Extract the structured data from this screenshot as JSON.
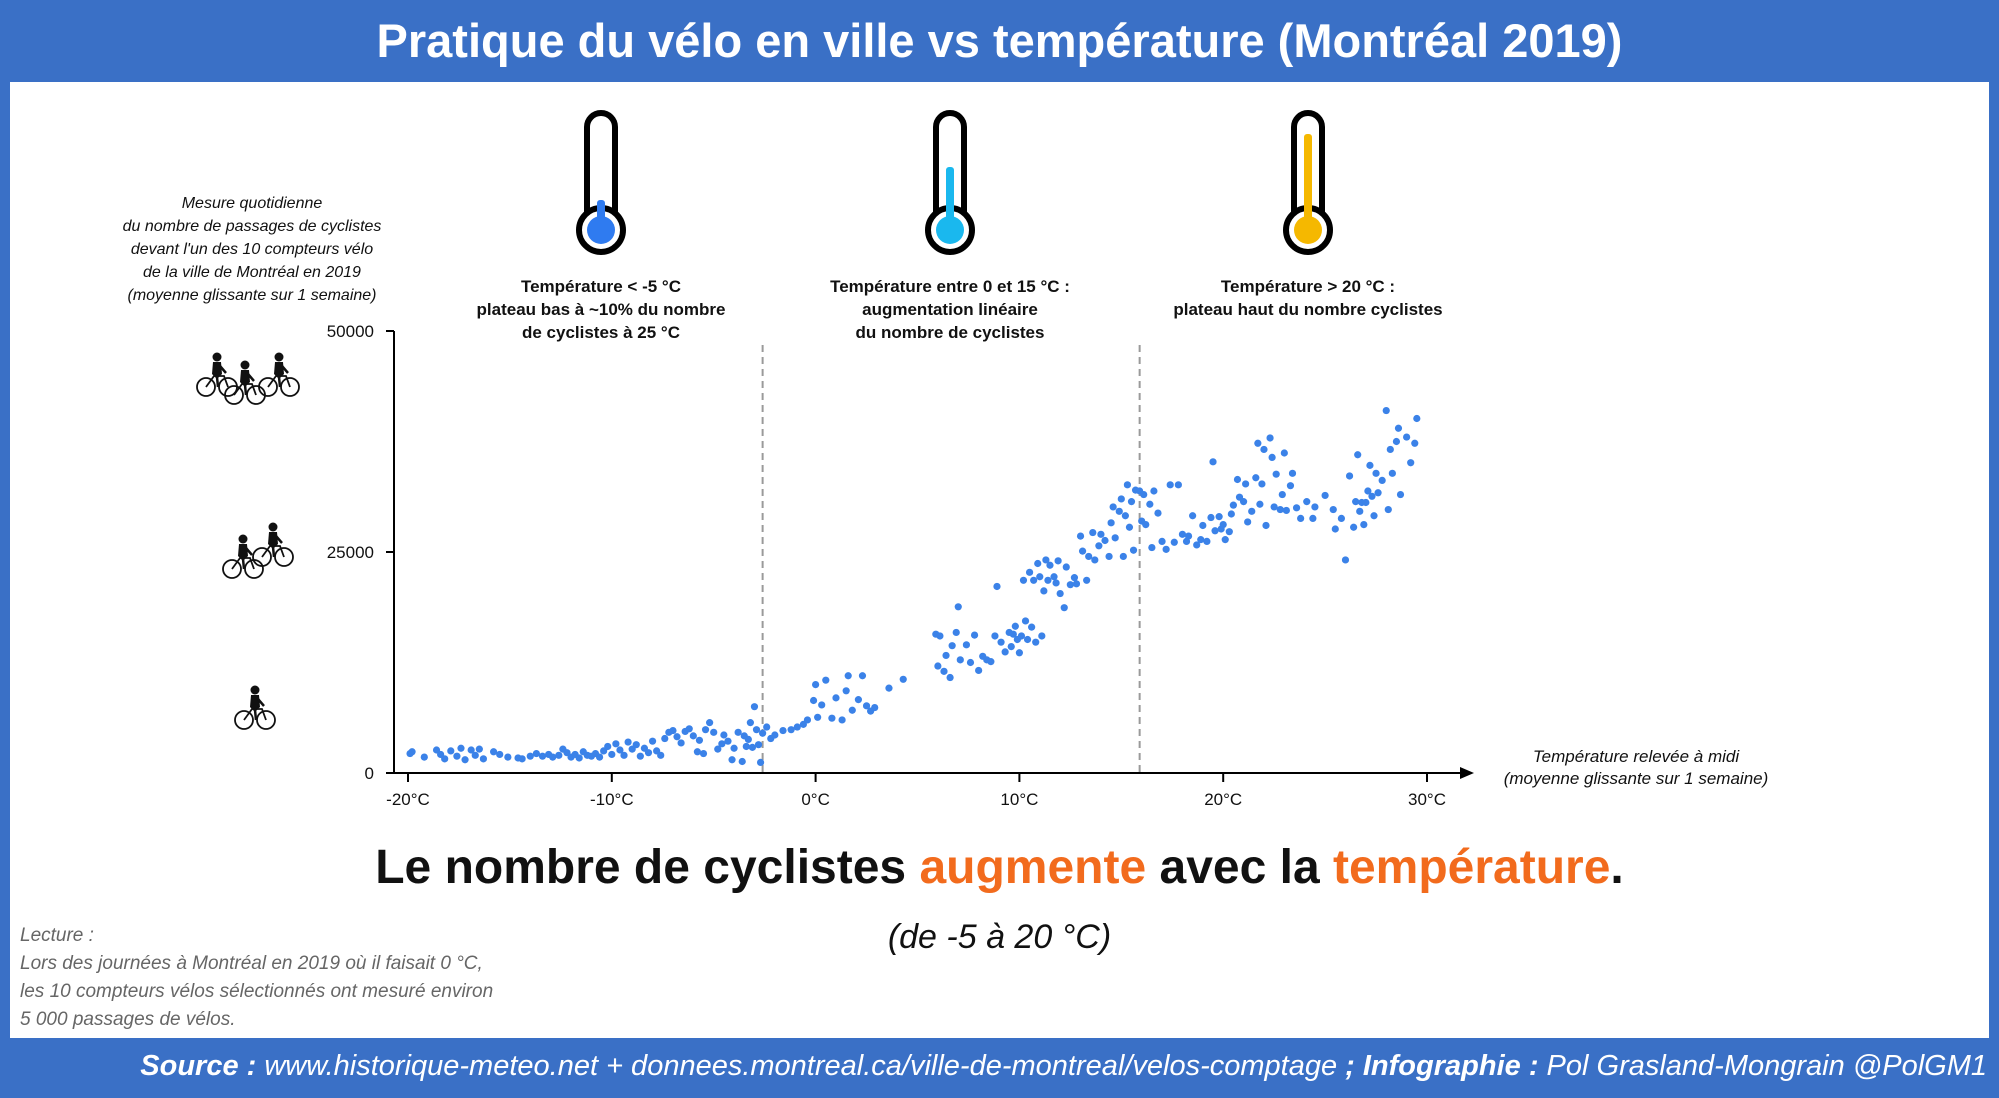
{
  "title": "Pratique du vélo en ville vs température (Montréal 2019)",
  "headline": {
    "part1": "Le nombre de cyclistes ",
    "word1": "augmente",
    "part2": " avec la ",
    "word2": "température",
    "part3": ".",
    "range": "(de -5 à 20 °C)",
    "highlight_color": "#f26b1d"
  },
  "reading": {
    "lines": [
      "Lecture :",
      "Lors des journées à Montréal en 2019 où il faisait 0 °C,",
      "les 10 compteurs vélos sélectionnés ont mesuré environ",
      "5 000 passages de vélos."
    ]
  },
  "footer": {
    "source_label": "Source :",
    "source_text": " www.historique-meteo.net + donnees.montreal.ca/ville-de-montreal/velos-comptage ",
    "credit_label": "; Infographie :",
    "credit_text": " Pol Grasland-Mongrain @PolGM1"
  },
  "annotations": {
    "cold": {
      "lines": [
        "Température < -5 °C",
        "plateau bas à ~10% du nombre",
        "de cyclistes à 25 °C"
      ],
      "thermometer_color": "#2f7bf0",
      "icon": "thermometer-low-icon"
    },
    "mid": {
      "lines": [
        "Température entre 0 et 15 °C :",
        "augmentation linéaire",
        "du nombre de cyclistes"
      ],
      "thermometer_color": "#1ab8ee",
      "icon": "thermometer-mid-icon"
    },
    "hot": {
      "lines": [
        "Température > 20 °C :",
        "plateau haut du nombre cyclistes"
      ],
      "thermometer_color": "#f5b800",
      "icon": "thermometer-high-icon"
    }
  },
  "chart_data": {
    "type": "scatter",
    "ylabel_lines": [
      "Mesure quotidienne",
      "du nombre de passages de cyclistes",
      "devant l'un des 10 compteurs vélo",
      "de la ville de Montréal en 2019",
      "(moyenne glissante sur 1 semaine)"
    ],
    "xlabel_lines": [
      "Température relevée à midi",
      "(moyenne glissante sur 1 semaine)"
    ],
    "xlim": [
      -20,
      30
    ],
    "ylim": [
      0,
      50000
    ],
    "xticks": [
      -20,
      -10,
      0,
      10,
      20,
      30
    ],
    "xtick_labels": [
      "-20°C",
      "-10°C",
      "0°C",
      "10°C",
      "20°C",
      "30°C"
    ],
    "yticks": [
      0,
      25000,
      50000
    ],
    "ytick_labels": [
      "0",
      "25000",
      "50000"
    ],
    "threshold_lines_x": [
      -2.6,
      15.9
    ],
    "point_color": "#3b82e8",
    "y_icons": [
      {
        "value": 44000,
        "icon": "three-cyclists-icon",
        "count": 3
      },
      {
        "value": 24000,
        "icon": "two-cyclists-icon",
        "count": 2
      },
      {
        "value": 7000,
        "icon": "one-cyclist-icon",
        "count": 1
      }
    ],
    "points": [
      [
        -19.9,
        2200
      ],
      [
        -19.8,
        2400
      ],
      [
        -19.2,
        1800
      ],
      [
        -18.6,
        2600
      ],
      [
        -18.4,
        2100
      ],
      [
        -18.2,
        1600
      ],
      [
        -17.9,
        2500
      ],
      [
        -17.6,
        1900
      ],
      [
        -17.4,
        2800
      ],
      [
        -17.2,
        1500
      ],
      [
        -16.9,
        2600
      ],
      [
        -16.7,
        2000
      ],
      [
        -16.5,
        2700
      ],
      [
        -16.3,
        1600
      ],
      [
        -15.8,
        2400
      ],
      [
        -15.5,
        2100
      ],
      [
        -15.1,
        1800
      ],
      [
        -14.6,
        1700
      ],
      [
        -14.4,
        1600
      ],
      [
        -14.0,
        1900
      ],
      [
        -13.7,
        2200
      ],
      [
        -13.4,
        1900
      ],
      [
        -13.1,
        2100
      ],
      [
        -12.9,
        1800
      ],
      [
        -12.6,
        2000
      ],
      [
        -12.4,
        2700
      ],
      [
        -12.2,
        2300
      ],
      [
        -12.0,
        1800
      ],
      [
        -11.8,
        2100
      ],
      [
        -11.6,
        1700
      ],
      [
        -11.4,
        2400
      ],
      [
        -11.2,
        2000
      ],
      [
        -11.0,
        1900
      ],
      [
        -10.8,
        2200
      ],
      [
        -10.6,
        1800
      ],
      [
        -10.4,
        2500
      ],
      [
        -10.2,
        3000
      ],
      [
        -10.0,
        2100
      ],
      [
        -9.8,
        3300
      ],
      [
        -9.6,
        2600
      ],
      [
        -9.4,
        2000
      ],
      [
        -9.2,
        3500
      ],
      [
        -9.0,
        2700
      ],
      [
        -8.8,
        3200
      ],
      [
        -8.6,
        1900
      ],
      [
        -8.4,
        2800
      ],
      [
        -8.2,
        2300
      ],
      [
        -8.0,
        3600
      ],
      [
        -7.8,
        2500
      ],
      [
        -7.6,
        2000
      ],
      [
        -7.4,
        3900
      ],
      [
        -7.2,
        4600
      ],
      [
        -7.0,
        4800
      ],
      [
        -6.8,
        4100
      ],
      [
        -6.6,
        3400
      ],
      [
        -6.4,
        4700
      ],
      [
        -6.2,
        5000
      ],
      [
        -6.0,
        4200
      ],
      [
        -5.8,
        2400
      ],
      [
        -5.7,
        3700
      ],
      [
        -5.5,
        2200
      ],
      [
        -5.4,
        4900
      ],
      [
        -5.2,
        5700
      ],
      [
        -5.0,
        4600
      ],
      [
        -4.8,
        2700
      ],
      [
        -4.6,
        3300
      ],
      [
        -4.5,
        4300
      ],
      [
        -4.3,
        3600
      ],
      [
        -4.1,
        1500
      ],
      [
        -4.0,
        2800
      ],
      [
        -3.8,
        4600
      ],
      [
        -3.6,
        1300
      ],
      [
        -3.5,
        4200
      ],
      [
        -3.4,
        3000
      ],
      [
        -3.3,
        3800
      ],
      [
        -3.2,
        5700
      ],
      [
        -3.1,
        2900
      ],
      [
        -3.0,
        7500
      ],
      [
        -2.9,
        4900
      ],
      [
        -2.8,
        3200
      ],
      [
        -2.7,
        1200
      ],
      [
        -2.6,
        4500
      ],
      [
        -2.4,
        5200
      ],
      [
        -2.2,
        3900
      ],
      [
        -2.0,
        4300
      ],
      [
        -1.6,
        4800
      ],
      [
        -1.2,
        4900
      ],
      [
        -0.9,
        5200
      ],
      [
        -0.6,
        5500
      ],
      [
        -0.4,
        6000
      ],
      [
        -0.1,
        8200
      ],
      [
        0.0,
        10000
      ],
      [
        0.1,
        6300
      ],
      [
        0.3,
        7700
      ],
      [
        0.5,
        10500
      ],
      [
        0.8,
        6200
      ],
      [
        1.0,
        8500
      ],
      [
        1.3,
        6000
      ],
      [
        1.5,
        9300
      ],
      [
        1.6,
        11000
      ],
      [
        1.8,
        7100
      ],
      [
        2.1,
        8300
      ],
      [
        2.3,
        11000
      ],
      [
        2.5,
        7600
      ],
      [
        2.7,
        7000
      ],
      [
        2.9,
        7400
      ],
      [
        3.6,
        9600
      ],
      [
        4.3,
        10600
      ],
      [
        5.9,
        15700
      ],
      [
        6.0,
        12100
      ],
      [
        6.1,
        15500
      ],
      [
        6.3,
        11500
      ],
      [
        6.4,
        13300
      ],
      [
        6.6,
        10800
      ],
      [
        6.7,
        14400
      ],
      [
        6.9,
        15900
      ],
      [
        7.0,
        18800
      ],
      [
        7.1,
        12800
      ],
      [
        7.4,
        14500
      ],
      [
        7.6,
        12500
      ],
      [
        7.8,
        15600
      ],
      [
        8.0,
        11600
      ],
      [
        8.2,
        13200
      ],
      [
        8.4,
        12800
      ],
      [
        8.6,
        12600
      ],
      [
        8.8,
        15500
      ],
      [
        8.9,
        21100
      ],
      [
        9.1,
        14800
      ],
      [
        9.3,
        13700
      ],
      [
        9.5,
        15900
      ],
      [
        9.6,
        14300
      ],
      [
        9.7,
        15700
      ],
      [
        9.8,
        16600
      ],
      [
        9.9,
        15100
      ],
      [
        10.0,
        13600
      ],
      [
        10.1,
        15500
      ],
      [
        10.2,
        21800
      ],
      [
        10.3,
        17200
      ],
      [
        10.4,
        15100
      ],
      [
        10.5,
        22700
      ],
      [
        10.6,
        16500
      ],
      [
        10.7,
        21800
      ],
      [
        10.8,
        14800
      ],
      [
        10.9,
        23700
      ],
      [
        11.0,
        22200
      ],
      [
        11.1,
        15500
      ],
      [
        11.2,
        20600
      ],
      [
        11.3,
        24100
      ],
      [
        11.4,
        21800
      ],
      [
        11.5,
        23500
      ],
      [
        11.7,
        22200
      ],
      [
        11.8,
        21500
      ],
      [
        11.9,
        24000
      ],
      [
        12.0,
        20300
      ],
      [
        12.2,
        18700
      ],
      [
        12.3,
        23300
      ],
      [
        12.5,
        21300
      ],
      [
        12.7,
        22100
      ],
      [
        12.8,
        21400
      ],
      [
        13.0,
        26800
      ],
      [
        13.1,
        25100
      ],
      [
        13.3,
        21800
      ],
      [
        13.4,
        24500
      ],
      [
        13.6,
        27200
      ],
      [
        13.7,
        24100
      ],
      [
        13.9,
        25700
      ],
      [
        14.0,
        27000
      ],
      [
        14.2,
        26300
      ],
      [
        14.4,
        24500
      ],
      [
        14.5,
        28300
      ],
      [
        14.6,
        30100
      ],
      [
        14.7,
        26600
      ],
      [
        14.9,
        29600
      ],
      [
        15.0,
        31000
      ],
      [
        15.1,
        24500
      ],
      [
        15.2,
        29100
      ],
      [
        15.3,
        32600
      ],
      [
        15.4,
        27800
      ],
      [
        15.5,
        30700
      ],
      [
        15.6,
        25200
      ],
      [
        15.7,
        32000
      ],
      [
        15.9,
        31900
      ],
      [
        16.0,
        28500
      ],
      [
        16.1,
        31500
      ],
      [
        16.2,
        28100
      ],
      [
        16.4,
        30400
      ],
      [
        16.5,
        25500
      ],
      [
        16.6,
        31900
      ],
      [
        16.8,
        29400
      ],
      [
        17.0,
        26200
      ],
      [
        17.2,
        25300
      ],
      [
        17.4,
        32600
      ],
      [
        17.6,
        26100
      ],
      [
        17.8,
        32600
      ],
      [
        18.0,
        27000
      ],
      [
        18.2,
        26200
      ],
      [
        18.3,
        26800
      ],
      [
        18.5,
        29100
      ],
      [
        18.7,
        25800
      ],
      [
        18.9,
        26400
      ],
      [
        19.0,
        28000
      ],
      [
        19.2,
        26200
      ],
      [
        19.4,
        28900
      ],
      [
        19.5,
        35200
      ],
      [
        19.6,
        27400
      ],
      [
        19.8,
        29000
      ],
      [
        19.9,
        27600
      ],
      [
        20.0,
        28100
      ],
      [
        20.1,
        26400
      ],
      [
        20.3,
        27300
      ],
      [
        20.4,
        29300
      ],
      [
        20.5,
        30300
      ],
      [
        20.7,
        33200
      ],
      [
        20.8,
        31200
      ],
      [
        21.0,
        30700
      ],
      [
        21.1,
        32700
      ],
      [
        21.2,
        28400
      ],
      [
        21.4,
        29600
      ],
      [
        21.6,
        33400
      ],
      [
        21.7,
        37300
      ],
      [
        21.8,
        30400
      ],
      [
        21.9,
        32700
      ],
      [
        22.0,
        36600
      ],
      [
        22.1,
        28000
      ],
      [
        22.3,
        37900
      ],
      [
        22.4,
        35700
      ],
      [
        22.5,
        30100
      ],
      [
        22.6,
        33800
      ],
      [
        22.8,
        29800
      ],
      [
        22.9,
        31500
      ],
      [
        23.0,
        36200
      ],
      [
        23.1,
        29700
      ],
      [
        23.3,
        32500
      ],
      [
        23.4,
        33900
      ],
      [
        23.6,
        30000
      ],
      [
        23.8,
        28800
      ],
      [
        24.1,
        30700
      ],
      [
        24.4,
        28800
      ],
      [
        24.5,
        30100
      ],
      [
        25.0,
        31400
      ],
      [
        25.4,
        29800
      ],
      [
        25.5,
        27600
      ],
      [
        25.8,
        28800
      ],
      [
        26.0,
        24100
      ],
      [
        26.2,
        33600
      ],
      [
        26.4,
        27800
      ],
      [
        26.5,
        30700
      ],
      [
        26.6,
        36000
      ],
      [
        26.7,
        29600
      ],
      [
        26.8,
        30600
      ],
      [
        26.9,
        28100
      ],
      [
        27.0,
        30600
      ],
      [
        27.1,
        31900
      ],
      [
        27.2,
        34800
      ],
      [
        27.3,
        31300
      ],
      [
        27.4,
        29100
      ],
      [
        27.5,
        33900
      ],
      [
        27.6,
        31700
      ],
      [
        27.8,
        33100
      ],
      [
        28.0,
        41000
      ],
      [
        28.1,
        29800
      ],
      [
        28.2,
        36600
      ],
      [
        28.3,
        33900
      ],
      [
        28.5,
        37500
      ],
      [
        28.6,
        39000
      ],
      [
        28.7,
        31500
      ],
      [
        29.0,
        38000
      ],
      [
        29.2,
        35100
      ],
      [
        29.4,
        37300
      ],
      [
        29.5,
        40100
      ]
    ]
  }
}
